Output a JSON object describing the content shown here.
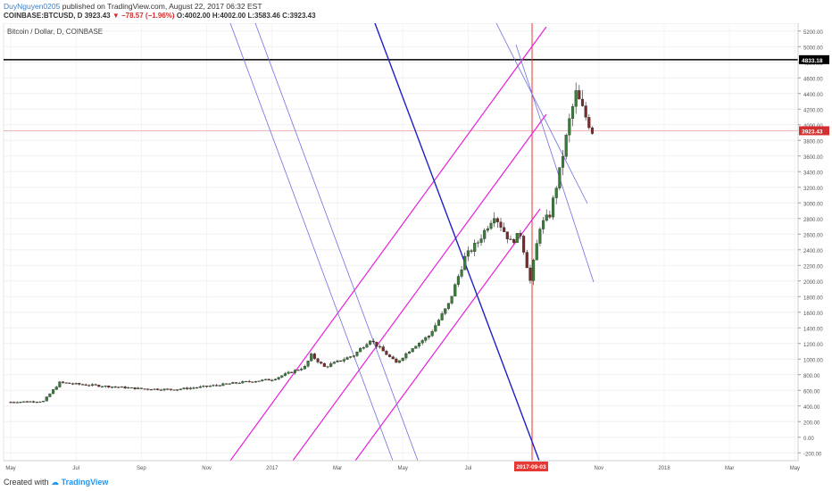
{
  "header": {
    "author": "DuyNguyen0205",
    "published_text": "published on TradingView.com, August 22, 2017 06:32 EST",
    "symbol": "COINBASE:BTCUSD, D",
    "last": "3923.43",
    "change": "▼ −78.57 (−1.96%)",
    "open": "O:4002.00",
    "high": "H:4002.00",
    "low": "L:3583.46",
    "close": "C:3923.43"
  },
  "footer": {
    "created_with": "Created with",
    "brand": "TradingView"
  },
  "chart_data": {
    "type": "candlestick",
    "title": "Bitcoin / Dollar, D, COINBASE",
    "y_ticks": [
      "5200.00",
      "5000.00",
      "4800.00",
      "4600.00",
      "4400.00",
      "4200.00",
      "4000.00",
      "3800.00",
      "3600.00",
      "3400.00",
      "3200.00",
      "3000.00",
      "2800.00",
      "2600.00",
      "2400.00",
      "2200.00",
      "2000.00",
      "1800.00",
      "1600.00",
      "1400.00",
      "1200.00",
      "1000.00",
      "800.00",
      "600.00",
      "400.00",
      "200.00",
      "0.00",
      "-200.00"
    ],
    "x_ticks": [
      "May",
      "Jul",
      "Sep",
      "Nov",
      "2017",
      "Mar",
      "May",
      "Jul",
      "Sep",
      "Nov",
      "2018",
      "Mar",
      "May"
    ],
    "ylim": [
      -300,
      5300
    ],
    "price_labels": [
      {
        "value": 4833.18,
        "text": "4833.18",
        "color": "#000000"
      },
      {
        "value": 3923.43,
        "text": "3923.43",
        "color": "#d32f2f"
      }
    ],
    "date_label": "2017-09-03",
    "price_series": [
      {
        "month": 0,
        "price": 450
      },
      {
        "month": 1,
        "price": 460
      },
      {
        "month": 1.5,
        "price": 700
      },
      {
        "month": 2,
        "price": 680
      },
      {
        "month": 3,
        "price": 650
      },
      {
        "month": 4,
        "price": 620
      },
      {
        "month": 5,
        "price": 610
      },
      {
        "month": 6,
        "price": 650
      },
      {
        "month": 7,
        "price": 700
      },
      {
        "month": 8,
        "price": 740
      },
      {
        "month": 9,
        "price": 900
      },
      {
        "month": 9.2,
        "price": 1050
      },
      {
        "month": 9.6,
        "price": 900
      },
      {
        "month": 10.5,
        "price": 1050
      },
      {
        "month": 11,
        "price": 1250
      },
      {
        "month": 11.4,
        "price": 1100
      },
      {
        "month": 11.8,
        "price": 950
      },
      {
        "month": 12.3,
        "price": 1150
      },
      {
        "month": 12.8,
        "price": 1300
      },
      {
        "month": 13.4,
        "price": 1700
      },
      {
        "month": 13.9,
        "price": 2300
      },
      {
        "month": 14.3,
        "price": 2500
      },
      {
        "month": 14.8,
        "price": 2850
      },
      {
        "month": 15.3,
        "price": 2500
      },
      {
        "month": 15.6,
        "price": 2600
      },
      {
        "month": 15.9,
        "price": 2000
      },
      {
        "month": 16.2,
        "price": 2700
      },
      {
        "month": 16.5,
        "price": 2850
      },
      {
        "month": 16.8,
        "price": 3400
      },
      {
        "month": 17.1,
        "price": 4050
      },
      {
        "month": 17.3,
        "price": 4400
      },
      {
        "month": 17.6,
        "price": 4100
      },
      {
        "month": 17.8,
        "price": 3923
      }
    ]
  }
}
